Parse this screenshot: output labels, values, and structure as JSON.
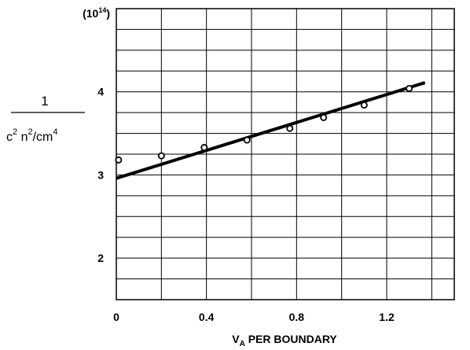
{
  "chart_data": {
    "type": "scatter",
    "multiplier_base": "10",
    "multiplier_exp": "14",
    "xlabel": {
      "main": "V",
      "sub": "A",
      "rest": " PER BOUNDARY"
    },
    "ylabel": {
      "numerator": "1",
      "denominator": [
        "c",
        "2",
        " n",
        "2",
        "/cm",
        "4"
      ]
    },
    "xlim": [
      0,
      1.5
    ],
    "ylim": [
      1.5,
      5
    ],
    "x_ticks": [
      0,
      0.4,
      0.8,
      1.2
    ],
    "x_tick_labels": [
      "0",
      "0.4",
      "0.8",
      "1.2"
    ],
    "y_ticks": [
      2,
      3,
      4
    ],
    "y_tick_labels": [
      "2",
      "3",
      "4"
    ],
    "grid": true,
    "series": [
      {
        "kind": "points",
        "marker": "open-circle",
        "x": [
          0.01,
          0.2,
          0.39,
          0.58,
          0.77,
          0.92,
          1.1,
          1.3
        ],
        "y": [
          3.18,
          3.23,
          3.33,
          3.42,
          3.56,
          3.69,
          3.84,
          4.04
        ]
      },
      {
        "kind": "fit-line",
        "x": [
          0.0,
          1.37
        ],
        "y": [
          2.96,
          4.11
        ]
      }
    ]
  }
}
